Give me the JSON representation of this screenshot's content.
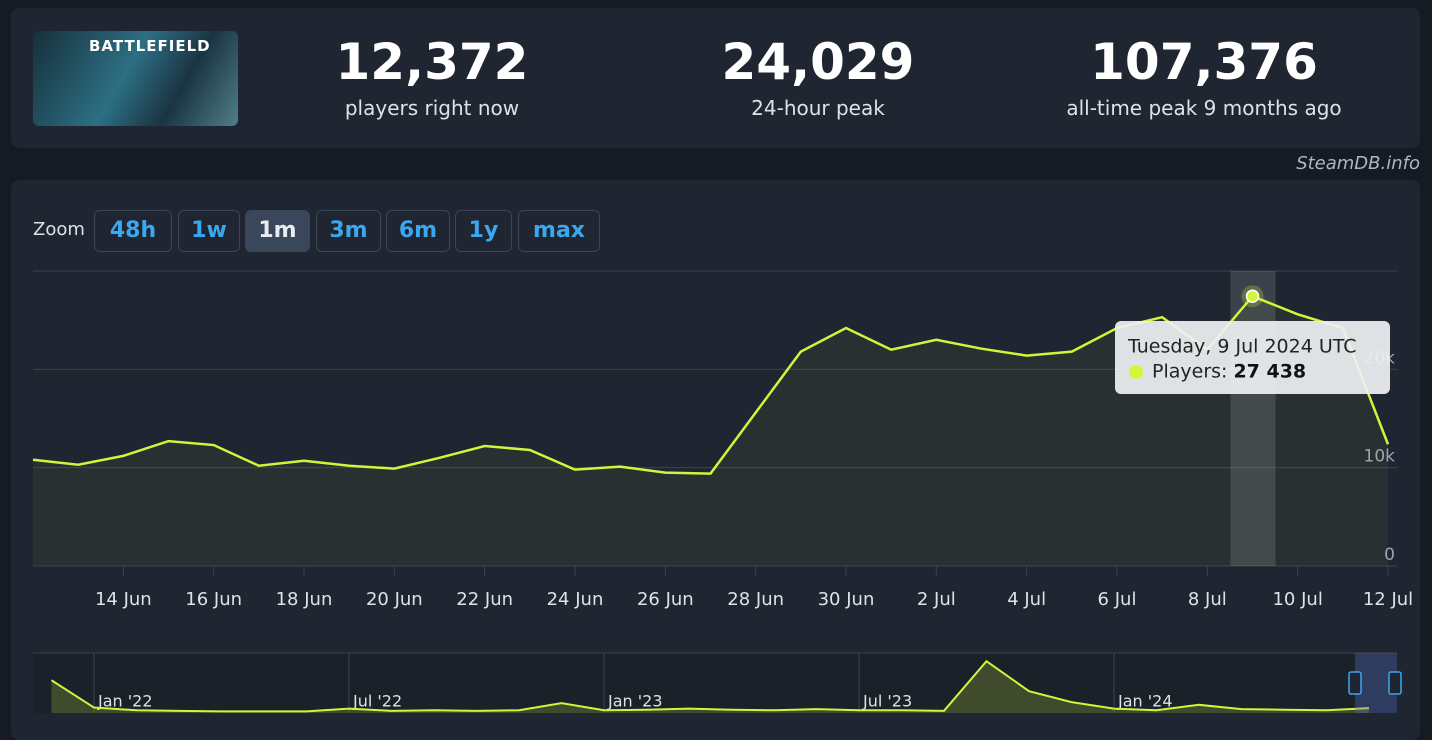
{
  "header": {
    "logo_text": "BATTLEFIELD",
    "stats": [
      {
        "value": "12,372",
        "label": "players right now"
      },
      {
        "value": "24,029",
        "label": "24-hour peak"
      },
      {
        "value": "107,376",
        "label": "all-time peak 9 months ago"
      }
    ],
    "credit": "SteamDB.info"
  },
  "zoom": {
    "label": "Zoom",
    "buttons": [
      "48h",
      "1w",
      "1m",
      "3m",
      "6m",
      "1y",
      "max"
    ],
    "active": 2
  },
  "chart_data": [
    {
      "type": "line",
      "categories": [
        null,
        null,
        "14 Jun",
        null,
        "16 Jun",
        null,
        "18 Jun",
        null,
        "20 Jun",
        null,
        "22 Jun",
        null,
        "24 Jun",
        null,
        "26 Jun",
        null,
        "28 Jun",
        null,
        "30 Jun",
        null,
        "2 Jul",
        null,
        "4 Jul",
        null,
        "6 Jul",
        null,
        "8 Jul",
        null,
        "10 Jul",
        null,
        "12 Jul"
      ],
      "series": [
        {
          "color": "#d2f53c",
          "values": [
            10800,
            10300,
            11200,
            12700,
            12300,
            10200,
            10700,
            10200,
            9900,
            11000,
            12200,
            11800,
            9800,
            10100,
            9500,
            9400,
            15600,
            21800,
            24200,
            22000,
            23000,
            22100,
            21400,
            21800,
            24200,
            25300,
            22000,
            27438,
            25600,
            24200,
            12372
          ],
          "value_labels": [
            null,
            null,
            null,
            null,
            null,
            null,
            null,
            null,
            null,
            null,
            null,
            null,
            null,
            null,
            null,
            null,
            null,
            null,
            null,
            null,
            null,
            null,
            null,
            null,
            null,
            null,
            null,
            "27 438",
            null,
            null,
            null
          ]
        }
      ],
      "ylim": [
        0,
        30000
      ],
      "yticks": [
        0,
        {
          "value": 10000,
          "label": "10k"
        },
        {
          "value": 20000,
          "label": "20k"
        }
      ],
      "grid": true,
      "tooltip": {
        "index": 27,
        "title": "Tuesday, 9 Jul 2024 UTC",
        "label": "Players:"
      }
    },
    {
      "type": "area",
      "categories": [
        null,
        "Jan '22",
        null,
        null,
        null,
        null,
        null,
        "Jul '22",
        null,
        null,
        null,
        null,
        null,
        "Jan '23",
        null,
        null,
        null,
        null,
        null,
        "Jul '23",
        null,
        null,
        null,
        null,
        null,
        "Jan '24",
        null,
        null,
        null,
        null,
        null,
        null
      ],
      "values": [
        60000,
        10000,
        5000,
        4000,
        3000,
        3000,
        3000,
        8000,
        4000,
        5000,
        4000,
        5000,
        18000,
        5000,
        6000,
        8000,
        6000,
        5000,
        7000,
        5000,
        5000,
        4000,
        95000,
        40000,
        20000,
        8000,
        5000,
        15000,
        7000,
        6000,
        5000,
        9000
      ],
      "ylim": [
        0,
        110000
      ],
      "color": "#d2f53c"
    }
  ]
}
